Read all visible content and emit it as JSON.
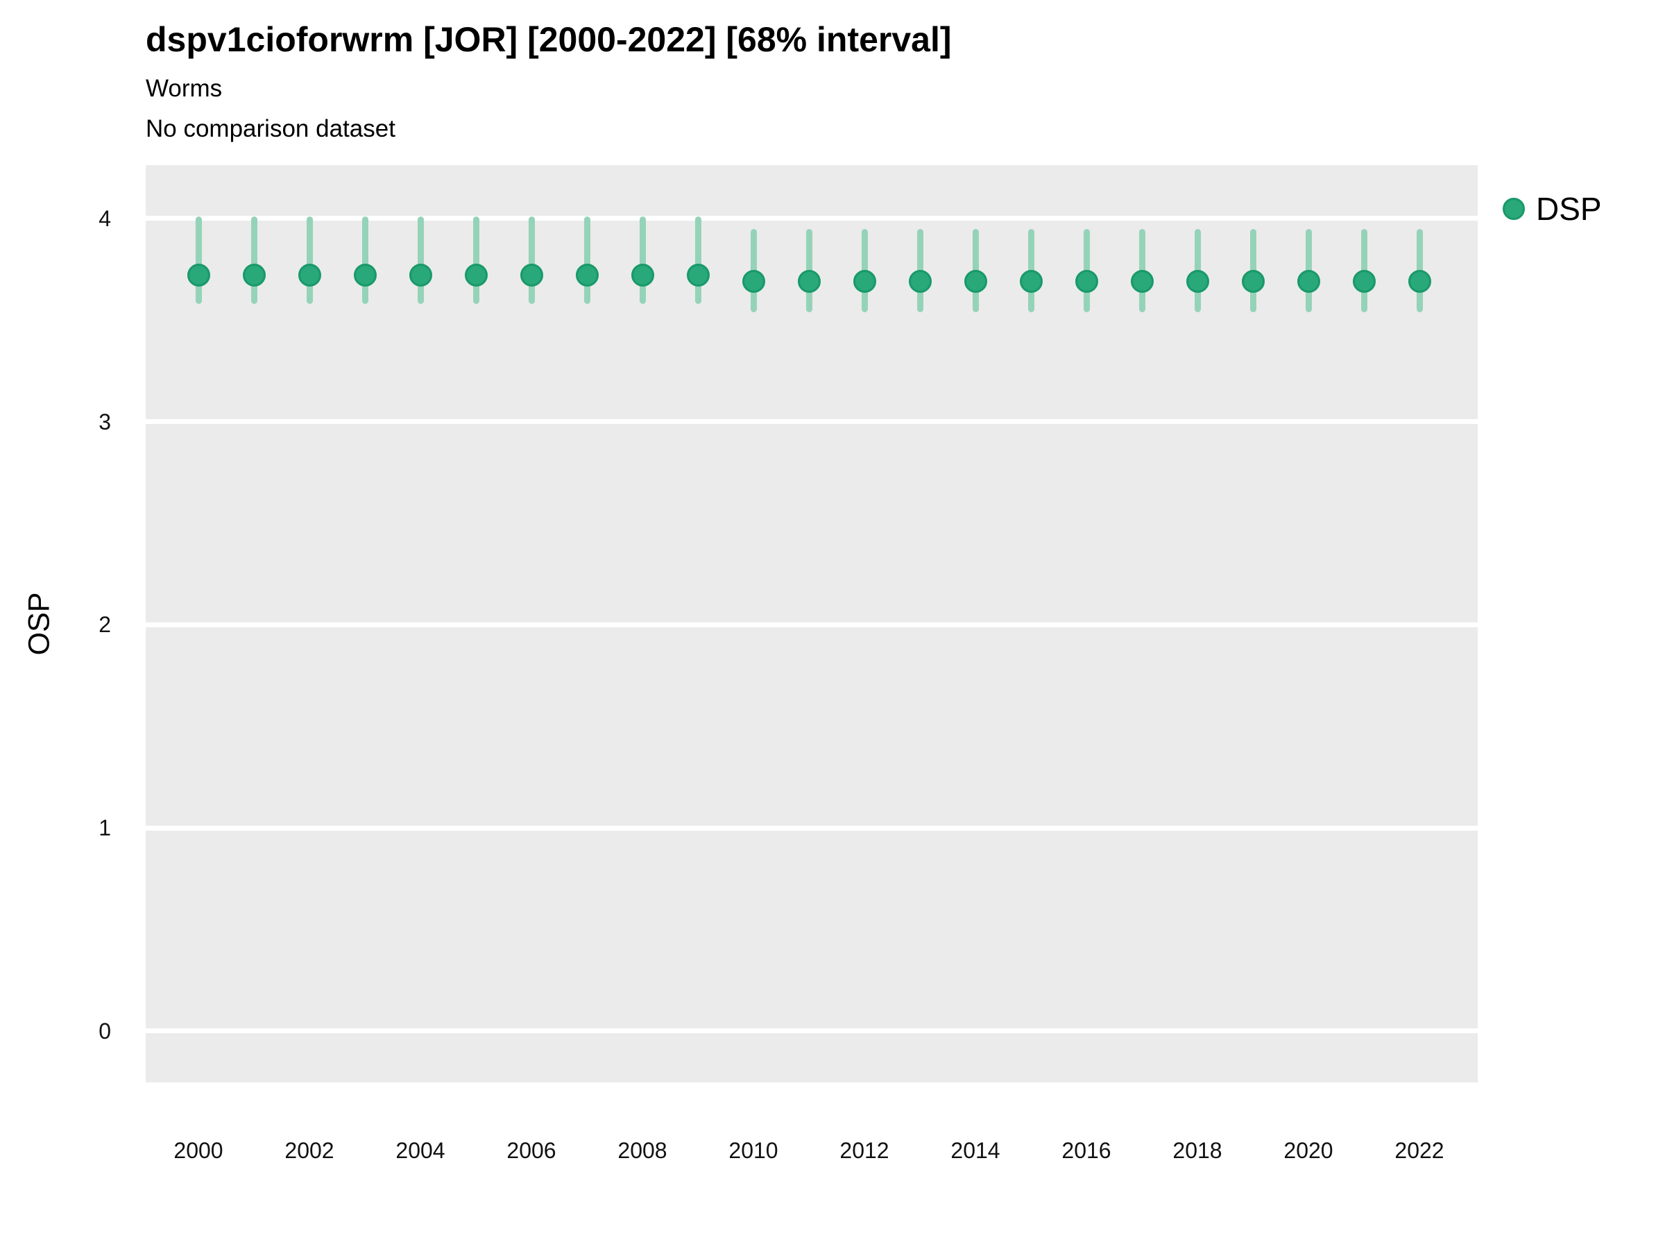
{
  "chart_data": {
    "type": "scatter",
    "title": "dspv1cioforwrm [JOR] [2000-2022] [68% interval]",
    "subtitle": "Worms",
    "note": "No comparison dataset",
    "interval": "68% interval",
    "xlabel": "",
    "ylabel": "OSP",
    "y_ticks": [
      4,
      3,
      2,
      1,
      0
    ],
    "x_ticks": [
      2000,
      2002,
      2004,
      2006,
      2008,
      2010,
      2012,
      2014,
      2016,
      2018,
      2020,
      2022
    ],
    "xlim": [
      1999.05,
      2023.05
    ],
    "ylim": [
      -0.253,
      4.263
    ],
    "grid": "horizontal major gridlines, white on gray panel",
    "legend_position": "right-top",
    "panel_color": "#ebebeb",
    "gridline_color": "#ffffff",
    "series": [
      {
        "name": "DSP",
        "color": "#29a879",
        "ring_color": "#19996a",
        "interval_color": "#95d3b9",
        "points": [
          {
            "year": 2000,
            "value": 3.72,
            "lo": 3.58,
            "hi": 4.01
          },
          {
            "year": 2001,
            "value": 3.72,
            "lo": 3.58,
            "hi": 4.01
          },
          {
            "year": 2002,
            "value": 3.72,
            "lo": 3.58,
            "hi": 4.01
          },
          {
            "year": 2003,
            "value": 3.72,
            "lo": 3.58,
            "hi": 4.01
          },
          {
            "year": 2004,
            "value": 3.72,
            "lo": 3.58,
            "hi": 4.01
          },
          {
            "year": 2005,
            "value": 3.72,
            "lo": 3.58,
            "hi": 4.01
          },
          {
            "year": 2006,
            "value": 3.72,
            "lo": 3.58,
            "hi": 4.01
          },
          {
            "year": 2007,
            "value": 3.72,
            "lo": 3.58,
            "hi": 4.01
          },
          {
            "year": 2008,
            "value": 3.72,
            "lo": 3.58,
            "hi": 4.01
          },
          {
            "year": 2009,
            "value": 3.72,
            "lo": 3.58,
            "hi": 4.01
          },
          {
            "year": 2010,
            "value": 3.69,
            "lo": 3.54,
            "hi": 3.95
          },
          {
            "year": 2011,
            "value": 3.69,
            "lo": 3.54,
            "hi": 3.95
          },
          {
            "year": 2012,
            "value": 3.69,
            "lo": 3.54,
            "hi": 3.95
          },
          {
            "year": 2013,
            "value": 3.69,
            "lo": 3.54,
            "hi": 3.95
          },
          {
            "year": 2014,
            "value": 3.69,
            "lo": 3.54,
            "hi": 3.95
          },
          {
            "year": 2015,
            "value": 3.69,
            "lo": 3.54,
            "hi": 3.95
          },
          {
            "year": 2016,
            "value": 3.69,
            "lo": 3.54,
            "hi": 3.95
          },
          {
            "year": 2017,
            "value": 3.69,
            "lo": 3.54,
            "hi": 3.95
          },
          {
            "year": 2018,
            "value": 3.69,
            "lo": 3.54,
            "hi": 3.95
          },
          {
            "year": 2019,
            "value": 3.69,
            "lo": 3.54,
            "hi": 3.95
          },
          {
            "year": 2020,
            "value": 3.69,
            "lo": 3.54,
            "hi": 3.95
          },
          {
            "year": 2021,
            "value": 3.69,
            "lo": 3.54,
            "hi": 3.95
          },
          {
            "year": 2022,
            "value": 3.69,
            "lo": 3.54,
            "hi": 3.95
          }
        ]
      }
    ]
  }
}
